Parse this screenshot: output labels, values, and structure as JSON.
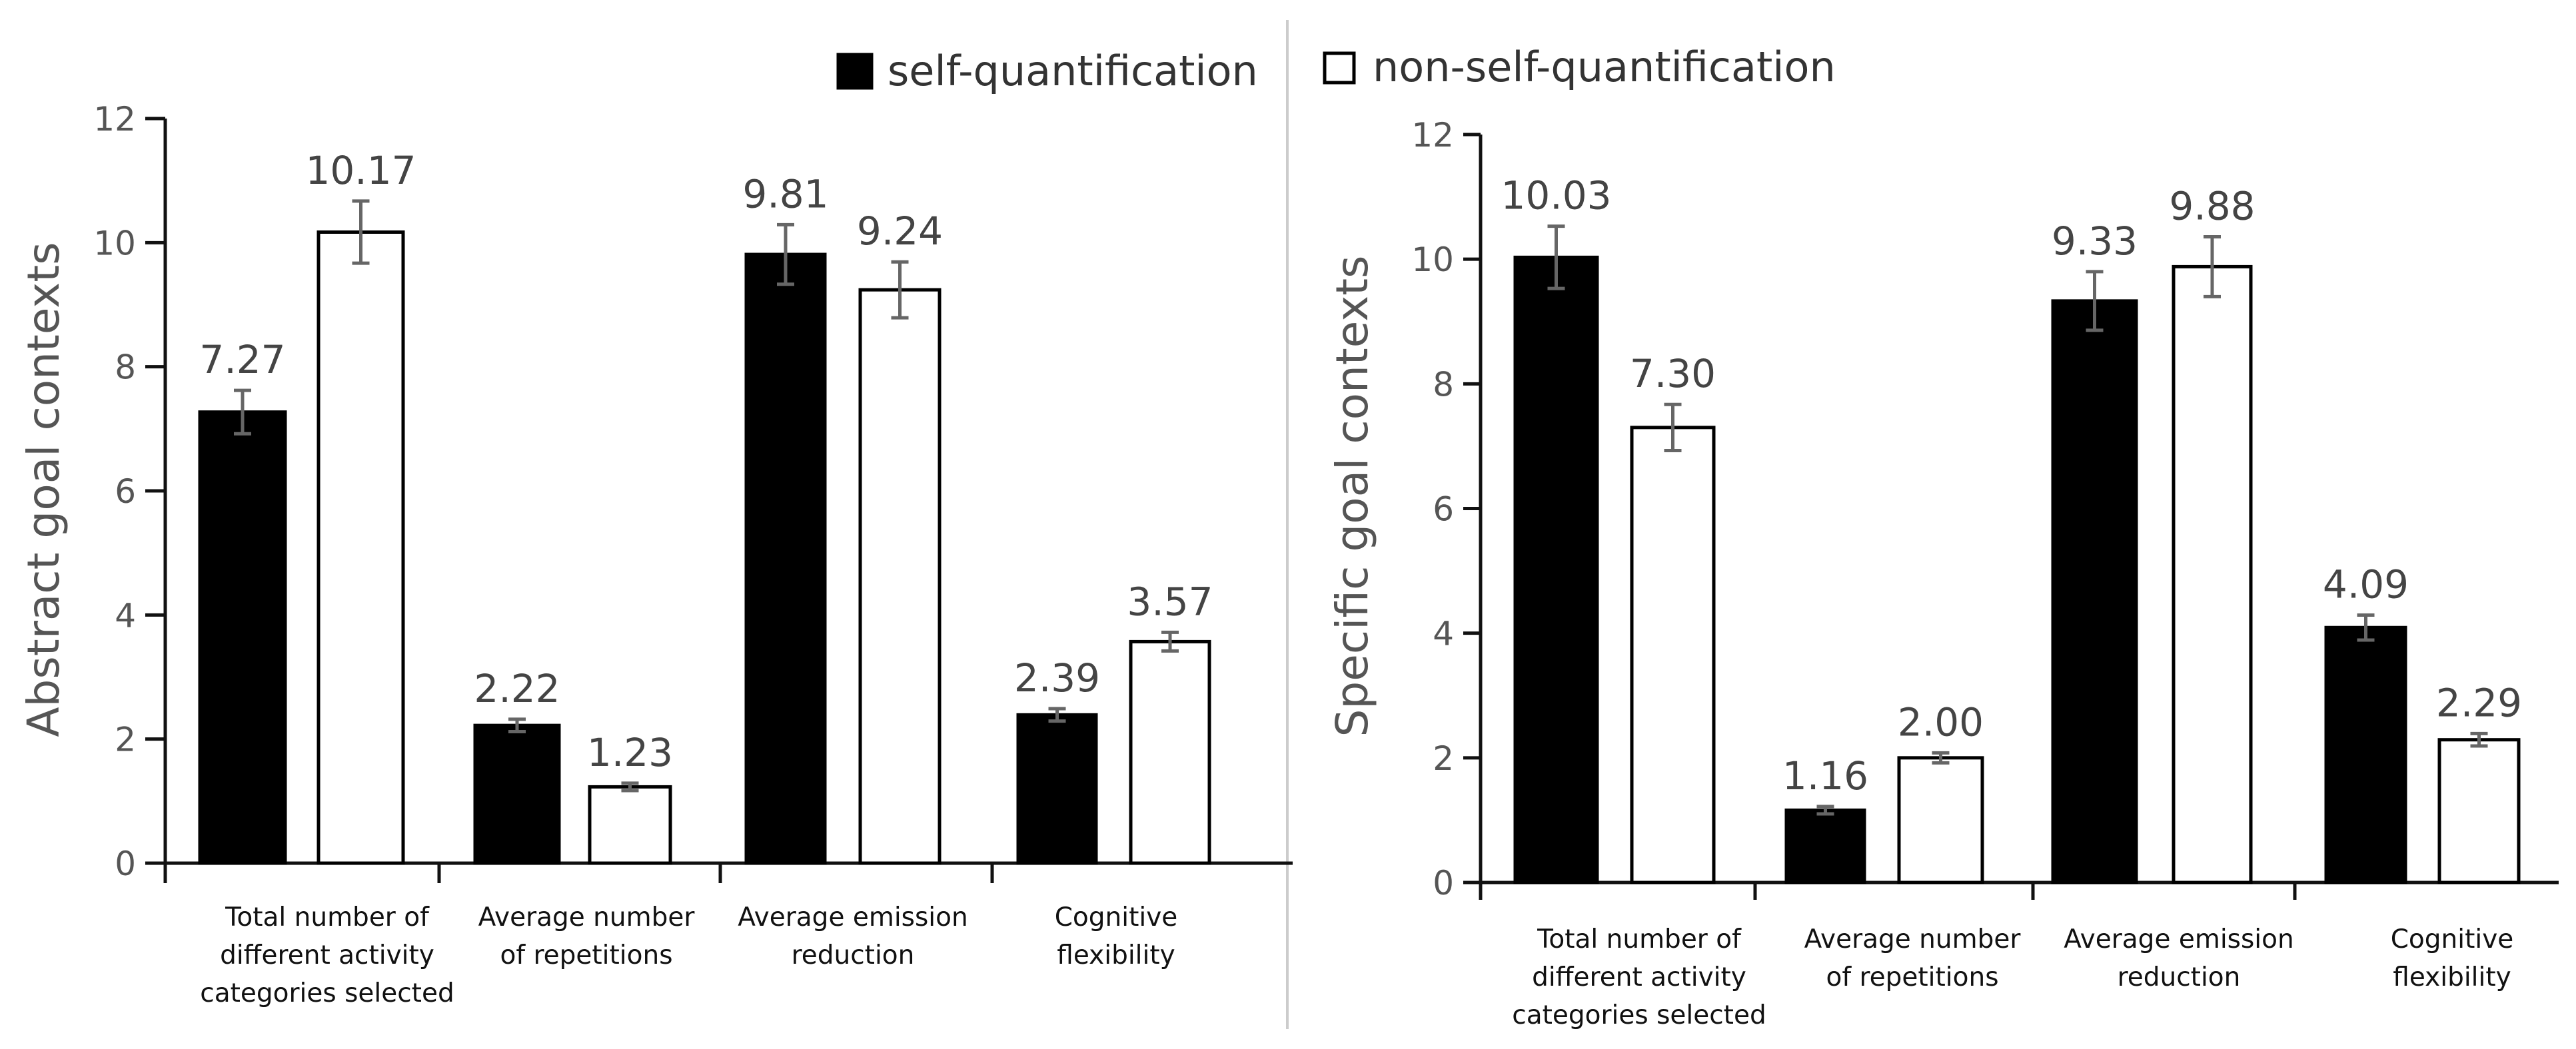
{
  "colors": {
    "self_quantification": "#000000",
    "non_self_quantification": "#ffffff",
    "bar_stroke": "#000000",
    "error_bar": "#666666"
  },
  "legend": {
    "items": [
      {
        "label": "self-quantification",
        "color": "#000000"
      },
      {
        "label": "non-self-quantification",
        "color": "#ffffff"
      }
    ]
  },
  "chart_data": [
    {
      "type": "bar",
      "title": "",
      "xlabel": "",
      "ylabel": "Abstract goal contexts",
      "ylim": [
        0,
        12
      ],
      "yticks": [
        "0",
        "2",
        "4",
        "6",
        "8",
        "10",
        "12"
      ],
      "categories": [
        [
          "Total number of",
          "different activity",
          "categories selected"
        ],
        [
          "Average number",
          "of repetitions"
        ],
        [
          "Average emission",
          "reduction"
        ],
        [
          "Cognitive",
          "flexibility"
        ]
      ],
      "series": [
        {
          "name": "self-quantification",
          "values": [
            7.27,
            2.22,
            9.81,
            2.39
          ],
          "labels": [
            "7.27",
            "2.22",
            "9.81",
            "2.39"
          ],
          "errors": [
            0.35,
            0.1,
            0.48,
            0.1
          ]
        },
        {
          "name": "non-self-quantification",
          "values": [
            10.17,
            1.23,
            9.24,
            3.57
          ],
          "labels": [
            "10.17",
            "1.23",
            "9.24",
            "3.57"
          ],
          "errors": [
            0.5,
            0.06,
            0.45,
            0.15
          ]
        }
      ]
    },
    {
      "type": "bar",
      "title": "",
      "xlabel": "",
      "ylabel": "Specific goal contexts",
      "ylim": [
        0,
        12
      ],
      "yticks": [
        "0",
        "2",
        "4",
        "6",
        "8",
        "10",
        "12"
      ],
      "categories": [
        [
          "Total number of",
          "different activity",
          "categories selected"
        ],
        [
          "Average number",
          "of repetitions"
        ],
        [
          "Average emission",
          "reduction"
        ],
        [
          "Cognitive",
          "flexibility"
        ]
      ],
      "series": [
        {
          "name": "self-quantification",
          "values": [
            10.03,
            1.16,
            9.33,
            4.09
          ],
          "labels": [
            "10.03",
            "1.16",
            "9.33",
            "4.09"
          ],
          "errors": [
            0.5,
            0.06,
            0.47,
            0.2
          ]
        },
        {
          "name": "non-self-quantification",
          "values": [
            7.3,
            2.0,
            9.88,
            2.29
          ],
          "labels": [
            "7.30",
            "2.00",
            "9.88",
            "2.29"
          ],
          "errors": [
            0.37,
            0.08,
            0.48,
            0.1
          ]
        }
      ]
    }
  ]
}
